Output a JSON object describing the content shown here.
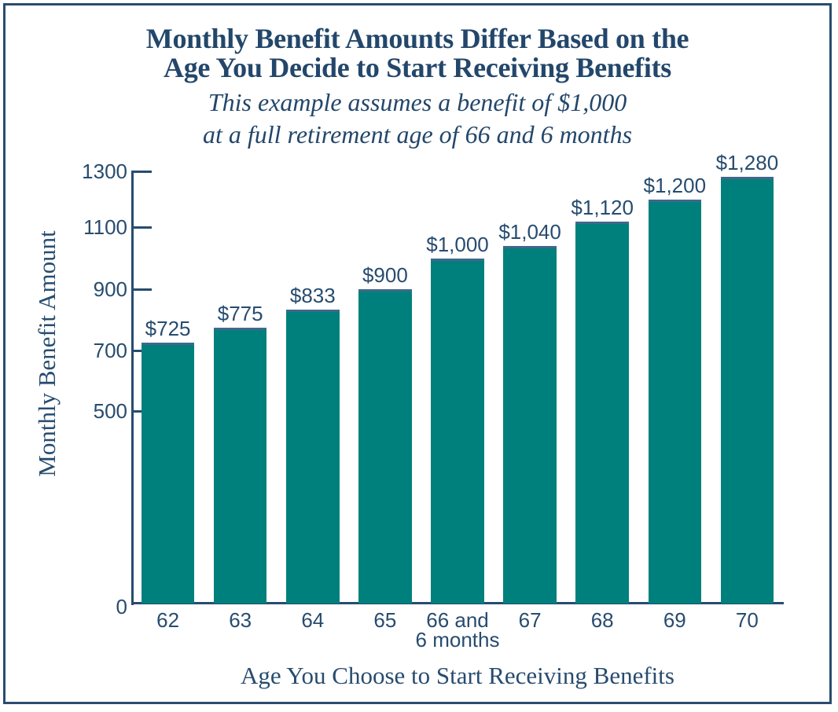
{
  "title": {
    "line1": "Monthly Benefit Amounts Differ Based on the",
    "line2": "Age You Decide to Start Receiving Benefits"
  },
  "subtitle": {
    "line1": "This example assumes a benefit of $1,000",
    "line2": "at a full retirement age of 66 and 6 months"
  },
  "chart_data": {
    "type": "bar",
    "title": "Monthly Benefit Amounts Differ Based on the Age You Decide to Start Receiving Benefits",
    "subtitle": "This example assumes a benefit of $1,000 at a full retirement age of 66 and 6 months",
    "xlabel": "Age You Choose to Start Receiving Benefits",
    "ylabel": "Monthly Benefit Amount",
    "categories": [
      "62",
      "63",
      "64",
      "65",
      "66 and 6 months",
      "67",
      "68",
      "69",
      "70"
    ],
    "category_label_lines": [
      [
        "62"
      ],
      [
        "63"
      ],
      [
        "64"
      ],
      [
        "65"
      ],
      [
        "66 and",
        "6 months"
      ],
      [
        "67"
      ],
      [
        "68"
      ],
      [
        "69"
      ],
      [
        "70"
      ]
    ],
    "values": [
      725,
      775,
      833,
      900,
      1000,
      1040,
      1120,
      1200,
      1280
    ],
    "value_labels": [
      "$725",
      "$775",
      "$833",
      "$900",
      "$1,000",
      "$1,040",
      "$1,120",
      "$1,200",
      "$1,280"
    ],
    "y_ticks": [
      0,
      500,
      700,
      900,
      1100,
      1300
    ],
    "ylim": [
      0,
      1300
    ],
    "grid": false,
    "legend_position": "none"
  },
  "colors": {
    "bar_fill": "#00807C",
    "bar_top_border": "#41688C",
    "text": "#274C6F",
    "title_text": "#23476B",
    "frame_border": "#2A4C6E"
  }
}
